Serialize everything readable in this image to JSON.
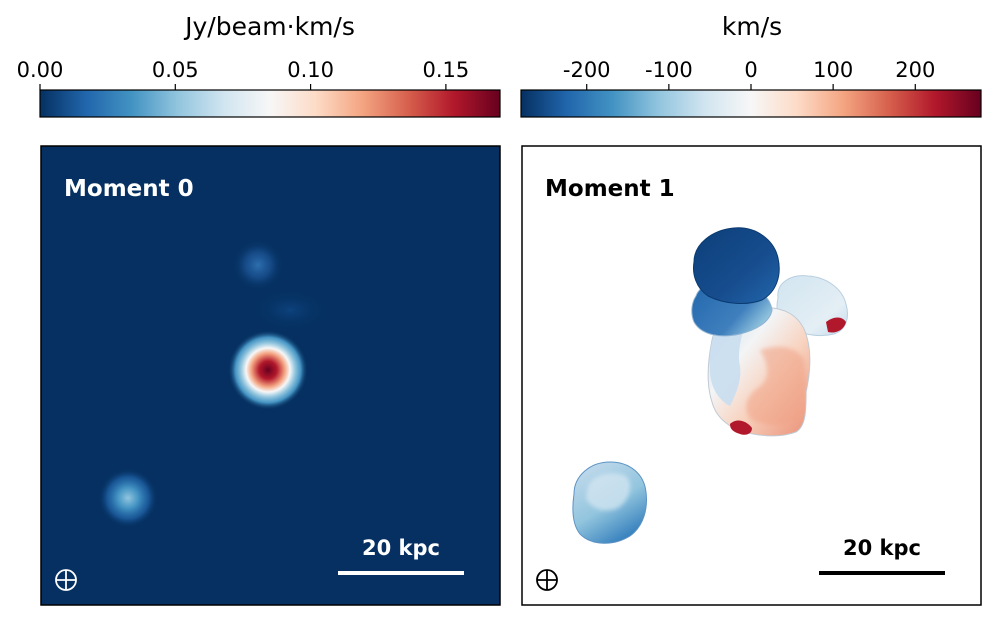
{
  "colors": {
    "rdbu": [
      "#053061",
      "#2166ac",
      "#4393c3",
      "#92c5de",
      "#d1e5f0",
      "#f7f7f7",
      "#fddbc7",
      "#f4a582",
      "#d6604d",
      "#b2182b",
      "#67001f"
    ],
    "moment0_background": "#053061",
    "moment0_text": "#ffffff",
    "moment1_text": "#000000"
  },
  "chart_data": [
    {
      "type": "heatmap",
      "panel": "moment0",
      "title": "Moment 0",
      "colorbar": {
        "label": "Jy/beam·km/s",
        "range": [
          0.0,
          0.17
        ],
        "ticks": [
          0.0,
          0.05,
          0.1,
          0.15
        ],
        "tick_labels": [
          "0.00",
          "0.05",
          "0.10",
          "0.15"
        ],
        "colormap": "RdBu_r"
      },
      "scale_bar": "20 kpc",
      "beam_marker": "beam-icon",
      "sources": [
        {
          "x": 0.5,
          "y": 0.5,
          "peak": 0.17
        },
        {
          "x": 0.19,
          "y": 0.77,
          "peak": 0.045
        },
        {
          "x": 0.47,
          "y": 0.26,
          "peak": 0.025
        }
      ],
      "grid": false
    },
    {
      "type": "heatmap",
      "panel": "moment1",
      "title": "Moment 1",
      "colorbar": {
        "label": "km/s",
        "range": [
          -280,
          280
        ],
        "ticks": [
          -200,
          -100,
          0,
          100,
          200
        ],
        "tick_labels": [
          "-200",
          "-100",
          "0",
          "100",
          "200"
        ],
        "colormap": "RdBu_r"
      },
      "scale_bar": "20 kpc",
      "beam_marker": "beam-icon",
      "velocity_regions": [
        {
          "region": "north lobe",
          "velocity": -240
        },
        {
          "region": "north-east lobe",
          "velocity": -40
        },
        {
          "region": "central body",
          "velocity": 90
        },
        {
          "region": "south-west companion",
          "velocity": -110
        }
      ],
      "grid": false
    }
  ]
}
